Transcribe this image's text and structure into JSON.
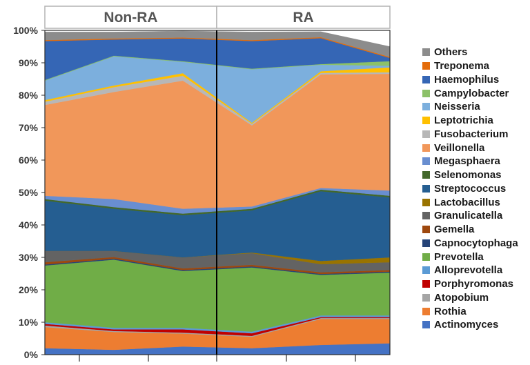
{
  "chart_data": {
    "type": "area",
    "stacked": true,
    "normalized": true,
    "panels": [
      {
        "label": "Non-RA",
        "x": [
          1,
          2,
          3
        ]
      },
      {
        "label": "RA",
        "x": [
          1,
          2,
          3
        ]
      }
    ],
    "y_ticks": [
      "0%",
      "10%",
      "20%",
      "30%",
      "40%",
      "50%",
      "60%",
      "70%",
      "80%",
      "90%",
      "100%"
    ],
    "ylim": [
      0,
      100
    ],
    "legend_position": "right",
    "series": [
      {
        "name": "Actinomyces",
        "color": "#4472c4",
        "values": [
          2.0,
          1.5,
          2.5,
          2.0,
          3.0,
          3.5
        ]
      },
      {
        "name": "Rothia",
        "color": "#ed7d31",
        "values": [
          6.5,
          5.5,
          4.0,
          3.5,
          8.0,
          7.5
        ]
      },
      {
        "name": "Atopobium",
        "color": "#a5a5a5",
        "values": [
          0.5,
          0.3,
          0.3,
          0.3,
          0.3,
          0.3
        ]
      },
      {
        "name": "Porphyromonas",
        "color": "#c00000",
        "values": [
          0.5,
          0.5,
          1.0,
          0.8,
          0.3,
          0.3
        ]
      },
      {
        "name": "Alloprevotella",
        "color": "#5b9bd5",
        "values": [
          0.5,
          0.5,
          0.5,
          0.5,
          0.5,
          0.5
        ]
      },
      {
        "name": "Prevotella",
        "color": "#70ad47",
        "values": [
          17.5,
          21.0,
          17.5,
          19.8,
          12.5,
          13.2
        ]
      },
      {
        "name": "Capnocytophaga",
        "color": "#264478",
        "values": [
          0.3,
          0.3,
          0.3,
          0.3,
          0.3,
          0.3
        ]
      },
      {
        "name": "Gemella",
        "color": "#9e480e",
        "values": [
          0.7,
          0.5,
          0.5,
          0.5,
          0.5,
          0.5
        ]
      },
      {
        "name": "Granulicatella",
        "color": "#636363",
        "values": [
          3.5,
          1.9,
          3.4,
          3.6,
          2.5,
          2.4
        ]
      },
      {
        "name": "Lactobacillus",
        "color": "#997300",
        "values": [
          0.0,
          0.0,
          0.0,
          0.2,
          1.0,
          1.5
        ]
      },
      {
        "name": "Streptococcus",
        "color": "#255e91",
        "values": [
          15.5,
          13.0,
          13.0,
          13.0,
          21.5,
          18.5
        ]
      },
      {
        "name": "Selenomonas",
        "color": "#43682b",
        "values": [
          0.5,
          0.5,
          0.5,
          0.5,
          0.5,
          0.5
        ]
      },
      {
        "name": "Megasphaera",
        "color": "#698ed0",
        "values": [
          1.0,
          2.5,
          1.5,
          0.7,
          0.5,
          1.6
        ]
      },
      {
        "name": "Veillonella",
        "color": "#f1975a",
        "values": [
          28.0,
          33.0,
          39.5,
          25.0,
          35.0,
          36.0
        ]
      },
      {
        "name": "Fusobacterium",
        "color": "#b7b7b7",
        "values": [
          1.0,
          1.5,
          1.5,
          0.5,
          0.5,
          0.5
        ]
      },
      {
        "name": "Leptotrichia",
        "color": "#ffc000",
        "values": [
          0.5,
          0.5,
          0.8,
          0.3,
          0.5,
          1.5
        ]
      },
      {
        "name": "Neisseria",
        "color": "#7cafdd",
        "values": [
          6.0,
          9.0,
          3.5,
          16.5,
          2.0,
          0.5
        ]
      },
      {
        "name": "Campylobacter",
        "color": "#8cc168",
        "values": [
          0.2,
          0.2,
          0.2,
          0.2,
          0.2,
          1.4
        ]
      },
      {
        "name": "Haemophilus",
        "color": "#3566b5",
        "values": [
          12.0,
          5.0,
          7.0,
          8.5,
          8.0,
          1.0
        ]
      },
      {
        "name": "Treponema",
        "color": "#e46c0a",
        "values": [
          0.3,
          0.3,
          0.3,
          0.3,
          0.3,
          0.3
        ]
      },
      {
        "name": "Others",
        "color": "#8c8c8c",
        "values": [
          2.5,
          2.0,
          2.0,
          2.5,
          1.7,
          3.2
        ]
      }
    ]
  }
}
